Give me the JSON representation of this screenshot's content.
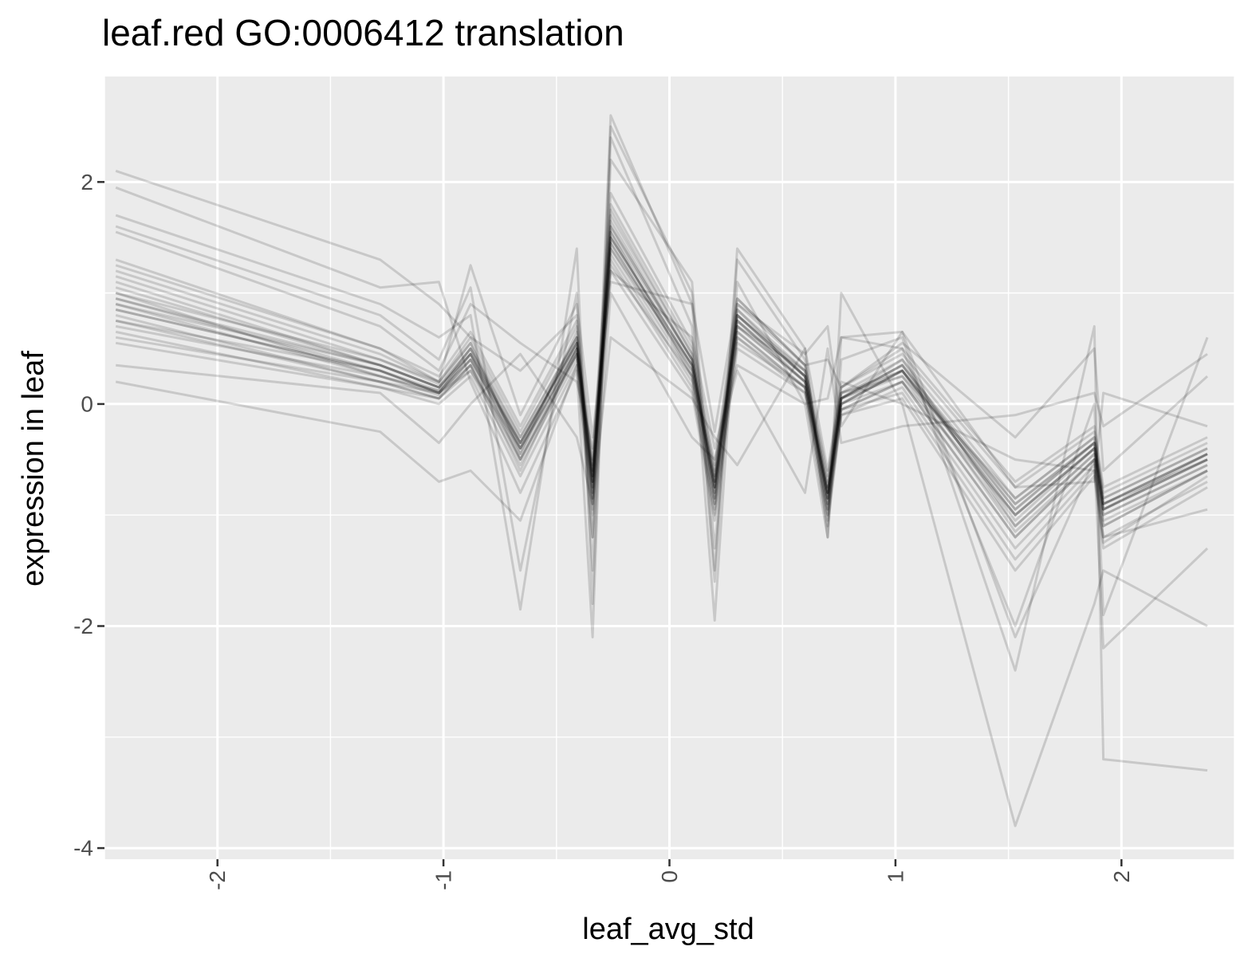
{
  "chart_data": {
    "type": "line",
    "title": "leaf.red GO:0006412 translation",
    "xlabel": "leaf_avg_std",
    "ylabel": "expression in leaf",
    "xlim": [
      -2.5,
      2.5
    ],
    "ylim": [
      -4.1,
      2.95
    ],
    "x_ticks": [
      -2,
      -1,
      0,
      1,
      2
    ],
    "x_tick_labels": [
      "-2",
      "-1",
      "0",
      "1",
      "2"
    ],
    "y_ticks": [
      -4,
      -2,
      0,
      2
    ],
    "y_tick_labels": [
      "-4",
      "-2",
      "0",
      "2"
    ],
    "grid": true,
    "legend": "none",
    "x": [
      -2.45,
      -1.28,
      -1.02,
      -0.88,
      -0.66,
      -0.41,
      -0.34,
      -0.26,
      0.1,
      0.2,
      0.3,
      0.6,
      0.7,
      0.76,
      1.03,
      1.53,
      1.88,
      1.92,
      2.38
    ],
    "series": [
      {
        "values": [
          1.1,
          0.35,
          0.15,
          0.45,
          -0.35,
          0.55,
          -0.7,
          1.6,
          0.4,
          -0.75,
          0.8,
          0.25,
          -0.8,
          0.05,
          0.35,
          -0.9,
          -0.35,
          -0.9,
          -0.45
        ]
      },
      {
        "values": [
          0.95,
          0.3,
          0.1,
          0.4,
          -0.4,
          0.5,
          -0.75,
          1.5,
          0.35,
          -0.8,
          0.75,
          0.2,
          -0.85,
          0.0,
          0.3,
          -1.0,
          -0.4,
          -0.95,
          -0.5
        ]
      },
      {
        "values": [
          0.9,
          0.25,
          0.12,
          0.5,
          -0.3,
          0.6,
          -0.65,
          1.45,
          0.3,
          -0.7,
          0.7,
          0.3,
          -0.75,
          0.1,
          0.25,
          -0.85,
          -0.3,
          -0.85,
          -0.4
        ]
      },
      {
        "values": [
          1.0,
          0.4,
          0.18,
          0.55,
          -0.45,
          0.65,
          -0.8,
          1.7,
          0.45,
          -0.85,
          0.85,
          0.25,
          -0.9,
          0.05,
          0.4,
          -1.1,
          -0.45,
          -1.0,
          -0.55
        ]
      },
      {
        "values": [
          0.85,
          0.3,
          0.1,
          0.35,
          -0.5,
          0.45,
          -0.9,
          1.55,
          0.25,
          -0.9,
          0.65,
          0.15,
          -0.95,
          -0.05,
          0.2,
          -1.2,
          -0.5,
          -1.1,
          -0.6
        ]
      },
      {
        "values": [
          1.2,
          0.45,
          0.2,
          0.6,
          -0.25,
          0.7,
          -0.55,
          1.8,
          0.5,
          -0.6,
          0.9,
          0.35,
          -0.7,
          0.15,
          0.45,
          -0.75,
          -0.25,
          -0.8,
          -0.35
        ]
      },
      {
        "values": [
          0.8,
          0.2,
          0.05,
          0.3,
          -0.55,
          0.4,
          -1.0,
          1.35,
          0.2,
          -1.0,
          0.6,
          0.1,
          -1.0,
          -0.1,
          0.15,
          -1.3,
          -0.55,
          -1.2,
          -0.7
        ]
      },
      {
        "values": [
          0.7,
          0.25,
          0.1,
          0.45,
          -0.35,
          0.55,
          -0.6,
          1.4,
          0.35,
          -0.65,
          0.7,
          0.2,
          -0.8,
          0.0,
          0.3,
          -0.95,
          -0.35,
          -0.9,
          -0.5
        ]
      },
      {
        "values": [
          1.05,
          0.35,
          0.15,
          0.5,
          -0.4,
          0.6,
          -0.7,
          1.65,
          0.4,
          -0.75,
          0.8,
          0.25,
          -0.85,
          0.05,
          0.35,
          -1.05,
          -0.4,
          -0.95,
          -0.45
        ]
      },
      {
        "values": [
          0.65,
          0.15,
          0.05,
          0.35,
          -0.6,
          0.5,
          -0.85,
          1.3,
          0.15,
          -0.95,
          0.55,
          0.15,
          -1.05,
          -0.05,
          0.1,
          -1.4,
          -0.6,
          -1.25,
          -0.65
        ]
      },
      {
        "values": [
          1.25,
          0.5,
          0.25,
          0.65,
          -0.2,
          0.75,
          -0.5,
          1.9,
          0.55,
          -0.55,
          0.95,
          0.35,
          -0.65,
          0.15,
          0.5,
          -0.7,
          -0.2,
          -0.75,
          -0.3
        ]
      },
      {
        "values": [
          0.75,
          0.3,
          0.12,
          0.4,
          -0.45,
          0.5,
          -0.75,
          1.45,
          0.3,
          -0.8,
          0.7,
          0.2,
          -0.85,
          0.05,
          0.25,
          -1.1,
          -0.45,
          -1.0,
          -0.55
        ]
      },
      {
        "values": [
          0.9,
          0.35,
          0.15,
          0.45,
          -0.5,
          0.45,
          -0.8,
          1.5,
          0.35,
          -0.85,
          0.75,
          0.2,
          -0.9,
          0.0,
          0.3,
          -1.15,
          -0.5,
          -1.05,
          -0.6
        ]
      },
      {
        "values": [
          1.0,
          0.25,
          0.08,
          0.4,
          -0.35,
          0.55,
          -0.65,
          1.55,
          0.4,
          -0.7,
          0.8,
          0.3,
          -0.8,
          0.1,
          0.3,
          -0.9,
          -0.35,
          -0.9,
          -0.45
        ]
      },
      {
        "values": [
          0.6,
          0.2,
          0.1,
          0.3,
          -0.4,
          0.45,
          -0.7,
          1.25,
          0.25,
          -0.75,
          0.6,
          0.15,
          -0.8,
          0.0,
          0.2,
          -1.0,
          -0.4,
          -0.95,
          -0.5
        ]
      },
      {
        "values": [
          1.15,
          0.4,
          0.2,
          0.55,
          -0.3,
          0.6,
          -0.6,
          1.75,
          0.45,
          -0.65,
          0.85,
          0.3,
          -0.75,
          0.1,
          0.4,
          -0.85,
          -0.3,
          -0.85,
          -0.4
        ]
      },
      {
        "values": [
          0.55,
          0.15,
          0.0,
          0.25,
          -0.65,
          0.35,
          -0.95,
          1.2,
          0.1,
          -1.05,
          0.5,
          0.1,
          -1.1,
          -0.1,
          0.05,
          -1.5,
          -0.65,
          -1.3,
          -0.75
        ]
      },
      {
        "values": [
          0.85,
          0.3,
          0.1,
          0.45,
          -0.4,
          0.5,
          -0.7,
          1.5,
          0.35,
          -0.75,
          0.75,
          0.25,
          -0.85,
          0.05,
          0.3,
          -1.0,
          -0.4,
          -0.95,
          -0.5
        ]
      },
      {
        "values": [
          0.95,
          0.35,
          0.15,
          0.5,
          -0.35,
          0.55,
          -0.65,
          1.6,
          0.4,
          -0.7,
          0.8,
          0.25,
          -0.8,
          0.05,
          0.35,
          -0.95,
          -0.35,
          -0.9,
          -0.45
        ]
      },
      {
        "values": [
          0.75,
          0.2,
          0.05,
          0.35,
          -0.5,
          0.45,
          -0.85,
          1.4,
          0.25,
          -0.9,
          0.65,
          0.15,
          -0.95,
          -0.05,
          0.2,
          -1.2,
          -0.5,
          -1.1,
          -0.6
        ]
      },
      {
        "values": [
          2.1,
          1.3,
          0.9,
          0.6,
          0.3,
          0.8,
          -1.2,
          2.6,
          0.9,
          -1.5,
          1.4,
          0.5,
          -1.2,
          0.4,
          0.6,
          -2.4,
          0.7,
          -3.2,
          -3.3
        ]
      },
      {
        "values": [
          1.95,
          1.05,
          1.1,
          0.2,
          -0.8,
          0.3,
          -2.1,
          2.4,
          0.7,
          -1.95,
          1.1,
          0.0,
          -1.2,
          1.0,
          0.0,
          -3.8,
          -1.8,
          -1.5,
          -2.0
        ]
      },
      {
        "values": [
          1.7,
          0.9,
          0.6,
          0.8,
          -1.85,
          1.4,
          -1.8,
          2.2,
          1.1,
          -1.3,
          0.9,
          0.45,
          0.7,
          -0.2,
          0.65,
          -2.1,
          -0.5,
          -2.2,
          -1.3
        ]
      },
      {
        "values": [
          1.6,
          0.8,
          0.4,
          1.05,
          -1.5,
          1.0,
          -1.5,
          2.5,
          1.0,
          -1.6,
          1.3,
          0.4,
          -1.0,
          0.6,
          0.5,
          -2.0,
          0.0,
          -1.9,
          0.6
        ]
      },
      {
        "values": [
          0.2,
          -0.25,
          -0.7,
          -0.6,
          -1.05,
          0.35,
          -1.2,
          1.0,
          -0.3,
          -0.5,
          0.3,
          -0.8,
          0.5,
          -0.35,
          -0.2,
          -0.1,
          0.1,
          -0.2,
          0.45
        ]
      },
      {
        "values": [
          0.35,
          0.1,
          -0.35,
          0.0,
          0.45,
          -0.3,
          -0.9,
          0.6,
          0.05,
          -0.3,
          -0.55,
          0.5,
          -0.6,
          0.2,
          0.0,
          -0.5,
          -0.6,
          -1.2,
          -0.95
        ]
      },
      {
        "values": [
          1.55,
          0.7,
          0.3,
          0.9,
          0.55,
          0.2,
          -0.4,
          1.1,
          0.9,
          -0.25,
          0.95,
          0.35,
          0.4,
          0.15,
          0.55,
          -0.3,
          0.5,
          -0.6,
          0.25
        ]
      },
      {
        "values": [
          1.3,
          0.5,
          0.2,
          1.25,
          -0.1,
          0.9,
          -0.3,
          1.2,
          0.6,
          -0.4,
          0.35,
          0.0,
          0.05,
          0.6,
          0.65,
          -0.75,
          -0.7,
          0.1,
          -0.2
        ]
      }
    ]
  }
}
